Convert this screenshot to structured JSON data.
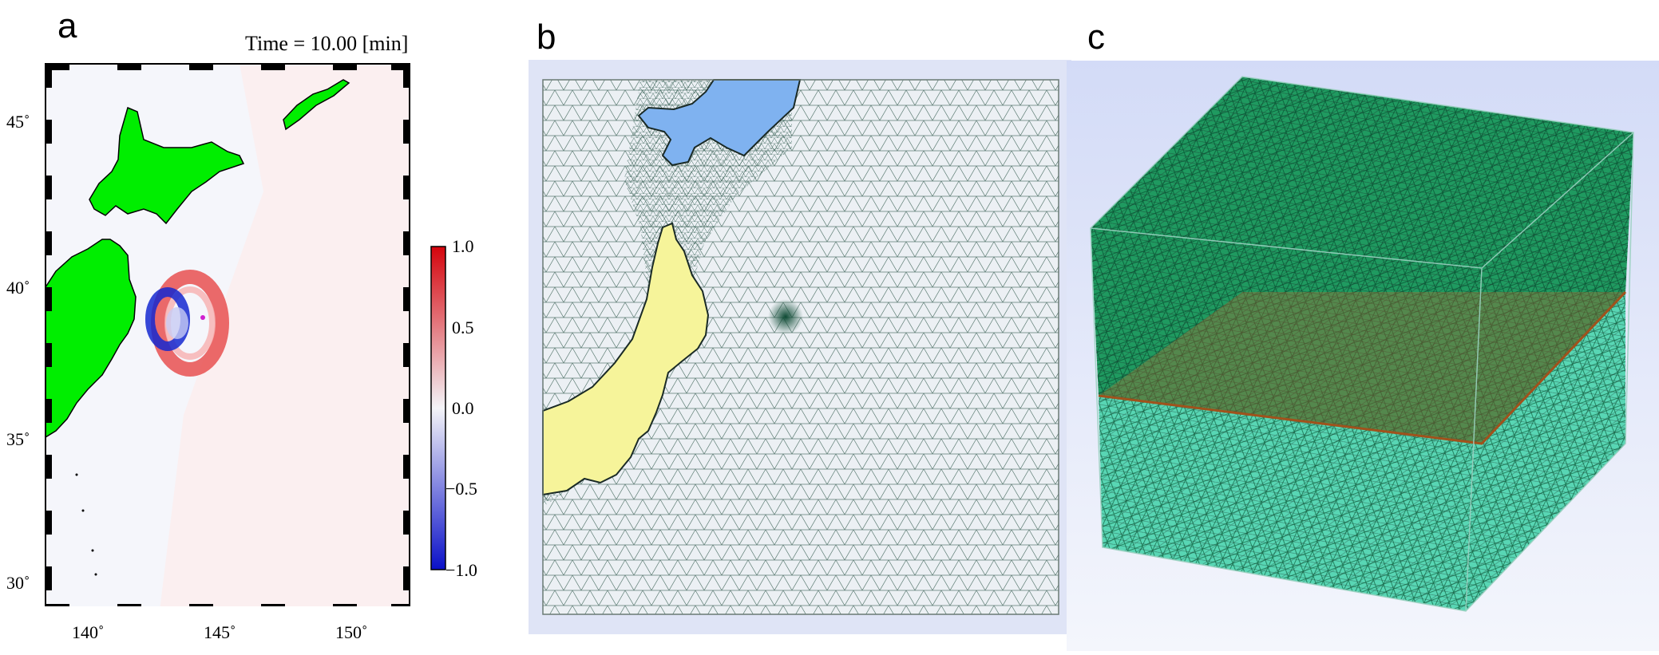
{
  "panels": {
    "a": {
      "letter": "a",
      "time_label": "Time = 10.00 [min]",
      "lat_ticks": [
        "45˚",
        "40˚",
        "35˚",
        "30˚"
      ],
      "lon_ticks": [
        "140˚",
        "145˚",
        "150˚"
      ],
      "colorbar": {
        "ticks": [
          "1.0",
          "0.5",
          "0.0",
          "−0.5",
          "−1.0"
        ],
        "colors": {
          "max": "#d4040c",
          "mid": "#f4f4f8",
          "min": "#0a10c8"
        }
      },
      "colors": {
        "land": "#00ee00",
        "sea": "#f5f6fb"
      }
    },
    "b": {
      "letter": "b",
      "colors": {
        "hokkaido": "#7fb2f0",
        "honshu": "#f6f49a",
        "mesh": "#2d5a4e",
        "background": "#dfe4f6"
      }
    },
    "c": {
      "letter": "c",
      "colors": {
        "mesh": "#0f8a55",
        "interface": "#b8662a",
        "background": "#d8def6"
      }
    }
  }
}
